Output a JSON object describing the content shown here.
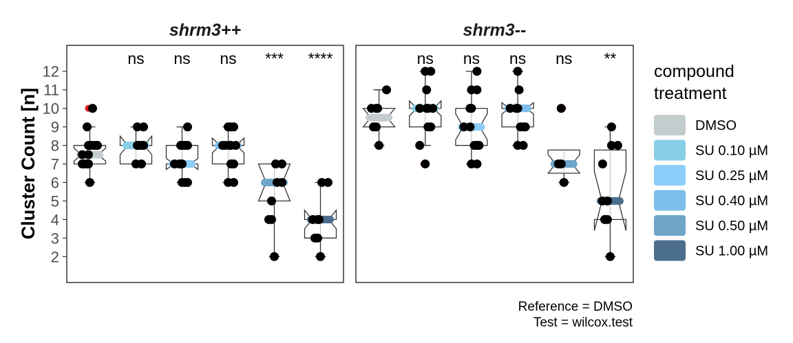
{
  "chart_data": {
    "type": "boxplot",
    "ylabel": "Cluster Count [n]",
    "yticks": [
      2,
      3,
      4,
      5,
      6,
      7,
      8,
      9,
      10,
      11,
      12
    ],
    "ylim": [
      0.6,
      13.4
    ],
    "grid": false,
    "legend": {
      "title_lines": [
        "compound",
        "treatment"
      ],
      "position": "right",
      "entries": [
        {
          "label": "DMSO",
          "color": "#c3cdcd"
        },
        {
          "label": "SU 0.10 µM",
          "color": "#87cee6"
        },
        {
          "label": "SU 0.25 µM",
          "color": "#8ccdfa"
        },
        {
          "label": "SU 0.40 µM",
          "color": "#7dbeeb"
        },
        {
          "label": "SU 0.50 µM",
          "color": "#6ea5c8"
        },
        {
          "label": "SU 1.00 µM",
          "color": "#4b6e8c"
        }
      ]
    },
    "panels": [
      {
        "title": "shrm3++",
        "groups": [
          {
            "compound": "DMSO",
            "q1": 7,
            "median": 7.5,
            "q3": 8,
            "notch_low": 7.15,
            "notch_high": 7.85,
            "whisker_low": 6,
            "whisker_high": 9,
            "outliers": [
              10
            ],
            "points": [
              6,
              7,
              7,
              7,
              7,
              7.5,
              7.5,
              8,
              8,
              8,
              8,
              8,
              9,
              10
            ],
            "sig": ""
          },
          {
            "compound": "SU 0.10 µM",
            "q1": 7,
            "median": 8,
            "q3": 8,
            "notch_low": 7.5,
            "notch_high": 8.5,
            "whisker_low": 7,
            "whisker_high": 9,
            "outliers": [],
            "points": [
              7,
              7,
              8,
              8,
              8,
              8,
              9,
              9
            ],
            "sig": "ns"
          },
          {
            "compound": "SU 0.25 µM",
            "q1": 7,
            "median": 7,
            "q3": 8,
            "notch_low": 6.7,
            "notch_high": 7.3,
            "whisker_low": 6,
            "whisker_high": 9,
            "outliers": [],
            "points": [
              6,
              6,
              6,
              7,
              7,
              7,
              7,
              8,
              8,
              8,
              8,
              9
            ],
            "sig": "ns"
          },
          {
            "compound": "SU 0.40 µM",
            "q1": 7,
            "median": 8,
            "q3": 8,
            "notch_low": 7.6,
            "notch_high": 8.4,
            "whisker_low": 6,
            "whisker_high": 9,
            "outliers": [],
            "points": [
              6,
              6,
              7,
              7,
              8,
              8,
              8,
              8,
              8,
              9,
              9,
              9
            ],
            "sig": "ns"
          },
          {
            "compound": "SU 0.50 µM",
            "q1": 5,
            "median": 6,
            "q3": 7,
            "notch_low": 5,
            "notch_high": 7,
            "whisker_low": 2,
            "whisker_high": 7,
            "outliers": [],
            "points": [
              2,
              4,
              4,
              5,
              6,
              6,
              7,
              7
            ],
            "sig": "***"
          },
          {
            "compound": "SU 1.00 µM",
            "q1": 3,
            "median": 4,
            "q3": 4,
            "notch_low": 3.5,
            "notch_high": 4.5,
            "whisker_low": 2,
            "whisker_high": 6,
            "outliers": [],
            "points": [
              2,
              3,
              3,
              4,
              4,
              4,
              6,
              6
            ],
            "sig": "****"
          }
        ]
      },
      {
        "title": "shrm3--",
        "groups": [
          {
            "compound": "DMSO",
            "q1": 9,
            "median": 9.5,
            "q3": 10,
            "notch_low": 9.0,
            "notch_high": 10.0,
            "whisker_low": 8,
            "whisker_high": 11,
            "outliers": [],
            "points": [
              8,
              9,
              9,
              10,
              10,
              10,
              11
            ],
            "sig": ""
          },
          {
            "compound": "SU 0.10 µM",
            "q1": 9,
            "median": 10,
            "q3": 10,
            "notch_low": 9.6,
            "notch_high": 10.4,
            "whisker_low": 8,
            "whisker_high": 12,
            "outliers": [
              7
            ],
            "points": [
              7,
              8,
              9,
              9,
              10,
              10,
              10,
              10,
              11,
              12,
              12
            ],
            "sig": "ns"
          },
          {
            "compound": "SU 0.25 µM",
            "q1": 8,
            "median": 9,
            "q3": 10,
            "notch_low": 8.3,
            "notch_high": 9.7,
            "whisker_low": 7,
            "whisker_high": 12,
            "outliers": [],
            "points": [
              7,
              7,
              8,
              8,
              8,
              9,
              9,
              10,
              10,
              11,
              11,
              12
            ],
            "sig": "ns"
          },
          {
            "compound": "SU 0.40 µM",
            "q1": 9,
            "median": 10,
            "q3": 10,
            "notch_low": 9.7,
            "notch_high": 10.3,
            "whisker_low": 8,
            "whisker_high": 12,
            "outliers": [],
            "points": [
              8,
              8,
              9,
              9,
              9,
              10,
              10,
              10,
              11,
              12
            ],
            "sig": "ns"
          },
          {
            "compound": "SU 0.50 µM",
            "q1": 6.5,
            "median": 7,
            "q3": 7.75,
            "notch_low": 6.5,
            "notch_high": 7.5,
            "whisker_low": 6,
            "whisker_high": 7.75,
            "outliers": [
              10
            ],
            "points": [
              6,
              7,
              7,
              10
            ],
            "sig": "ns"
          },
          {
            "compound": "SU 1.00 µM",
            "q1": 4,
            "median": 5,
            "q3": 7.75,
            "notch_low": 3.4,
            "notch_high": 6.6,
            "whisker_low": 2,
            "whisker_high": 9,
            "outliers": [],
            "points": [
              2,
              4,
              4,
              5,
              5,
              7,
              8,
              8,
              9
            ],
            "sig": "**"
          }
        ]
      }
    ],
    "caption_lines": [
      "Reference = DMSO",
      "Test = wilcox.test"
    ]
  }
}
